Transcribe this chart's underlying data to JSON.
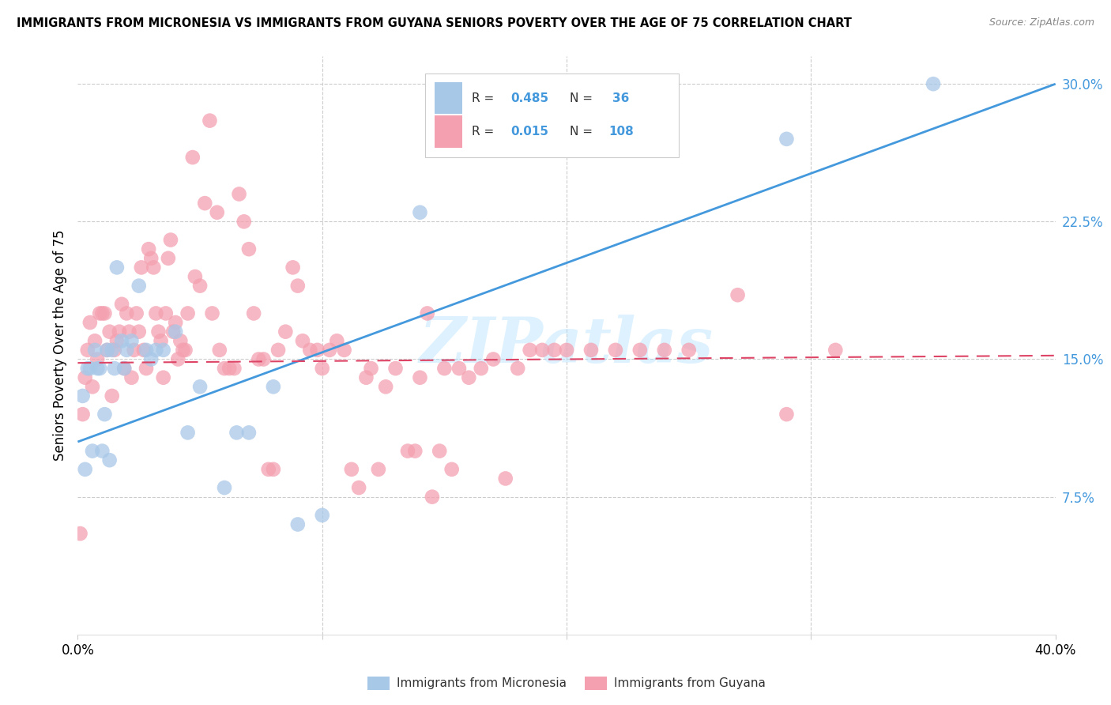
{
  "title": "IMMIGRANTS FROM MICRONESIA VS IMMIGRANTS FROM GUYANA SENIORS POVERTY OVER THE AGE OF 75 CORRELATION CHART",
  "source": "Source: ZipAtlas.com",
  "ylabel": "Seniors Poverty Over the Age of 75",
  "xlim": [
    0.0,
    0.4
  ],
  "ylim": [
    0.0,
    0.315
  ],
  "yticks": [
    0.075,
    0.15,
    0.225,
    0.3
  ],
  "ytick_labels": [
    "7.5%",
    "15.0%",
    "22.5%",
    "30.0%"
  ],
  "color_blue": "#a8c8e8",
  "color_pink": "#f4a0b0",
  "color_blue_line": "#4499dd",
  "color_pink_line": "#dd4466",
  "watermark": "ZIPatlas",
  "mic_line_x0": 0.0,
  "mic_line_y0": 0.105,
  "mic_line_x1": 0.4,
  "mic_line_y1": 0.3,
  "guy_line_x0": 0.0,
  "guy_line_y0": 0.148,
  "guy_line_x1": 0.4,
  "guy_line_y1": 0.152,
  "micronesia_x": [
    0.002,
    0.003,
    0.004,
    0.005,
    0.006,
    0.007,
    0.008,
    0.009,
    0.01,
    0.011,
    0.012,
    0.013,
    0.014,
    0.015,
    0.016,
    0.018,
    0.019,
    0.02,
    0.022,
    0.025,
    0.028,
    0.03,
    0.032,
    0.035,
    0.04,
    0.045,
    0.05,
    0.06,
    0.065,
    0.07,
    0.08,
    0.09,
    0.1,
    0.14,
    0.29,
    0.35
  ],
  "micronesia_y": [
    0.13,
    0.09,
    0.145,
    0.145,
    0.1,
    0.155,
    0.145,
    0.145,
    0.1,
    0.12,
    0.155,
    0.095,
    0.155,
    0.145,
    0.2,
    0.16,
    0.145,
    0.155,
    0.16,
    0.19,
    0.155,
    0.15,
    0.155,
    0.155,
    0.165,
    0.11,
    0.135,
    0.08,
    0.11,
    0.11,
    0.135,
    0.06,
    0.065,
    0.23,
    0.27,
    0.3
  ],
  "guyana_x": [
    0.001,
    0.002,
    0.003,
    0.004,
    0.005,
    0.006,
    0.007,
    0.008,
    0.009,
    0.01,
    0.011,
    0.012,
    0.013,
    0.014,
    0.015,
    0.016,
    0.017,
    0.018,
    0.019,
    0.02,
    0.021,
    0.022,
    0.023,
    0.024,
    0.025,
    0.026,
    0.027,
    0.028,
    0.029,
    0.03,
    0.031,
    0.032,
    0.033,
    0.034,
    0.035,
    0.036,
    0.037,
    0.038,
    0.039,
    0.04,
    0.041,
    0.042,
    0.043,
    0.044,
    0.045,
    0.047,
    0.048,
    0.05,
    0.052,
    0.054,
    0.055,
    0.057,
    0.058,
    0.06,
    0.062,
    0.064,
    0.066,
    0.068,
    0.07,
    0.072,
    0.074,
    0.076,
    0.078,
    0.08,
    0.082,
    0.085,
    0.088,
    0.09,
    0.092,
    0.095,
    0.098,
    0.1,
    0.103,
    0.106,
    0.109,
    0.112,
    0.115,
    0.118,
    0.12,
    0.123,
    0.126,
    0.13,
    0.135,
    0.138,
    0.14,
    0.143,
    0.145,
    0.148,
    0.15,
    0.153,
    0.156,
    0.16,
    0.165,
    0.17,
    0.175,
    0.18,
    0.185,
    0.19,
    0.195,
    0.2,
    0.21,
    0.22,
    0.23,
    0.24,
    0.25,
    0.27,
    0.29,
    0.31
  ],
  "guyana_y": [
    0.055,
    0.12,
    0.14,
    0.155,
    0.17,
    0.135,
    0.16,
    0.15,
    0.175,
    0.175,
    0.175,
    0.155,
    0.165,
    0.13,
    0.155,
    0.16,
    0.165,
    0.18,
    0.145,
    0.175,
    0.165,
    0.14,
    0.155,
    0.175,
    0.165,
    0.2,
    0.155,
    0.145,
    0.21,
    0.205,
    0.2,
    0.175,
    0.165,
    0.16,
    0.14,
    0.175,
    0.205,
    0.215,
    0.165,
    0.17,
    0.15,
    0.16,
    0.155,
    0.155,
    0.175,
    0.26,
    0.195,
    0.19,
    0.235,
    0.28,
    0.175,
    0.23,
    0.155,
    0.145,
    0.145,
    0.145,
    0.24,
    0.225,
    0.21,
    0.175,
    0.15,
    0.15,
    0.09,
    0.09,
    0.155,
    0.165,
    0.2,
    0.19,
    0.16,
    0.155,
    0.155,
    0.145,
    0.155,
    0.16,
    0.155,
    0.09,
    0.08,
    0.14,
    0.145,
    0.09,
    0.135,
    0.145,
    0.1,
    0.1,
    0.14,
    0.175,
    0.075,
    0.1,
    0.145,
    0.09,
    0.145,
    0.14,
    0.145,
    0.15,
    0.085,
    0.145,
    0.155,
    0.155,
    0.155,
    0.155,
    0.155,
    0.155,
    0.155,
    0.155,
    0.155,
    0.185,
    0.12,
    0.155
  ]
}
